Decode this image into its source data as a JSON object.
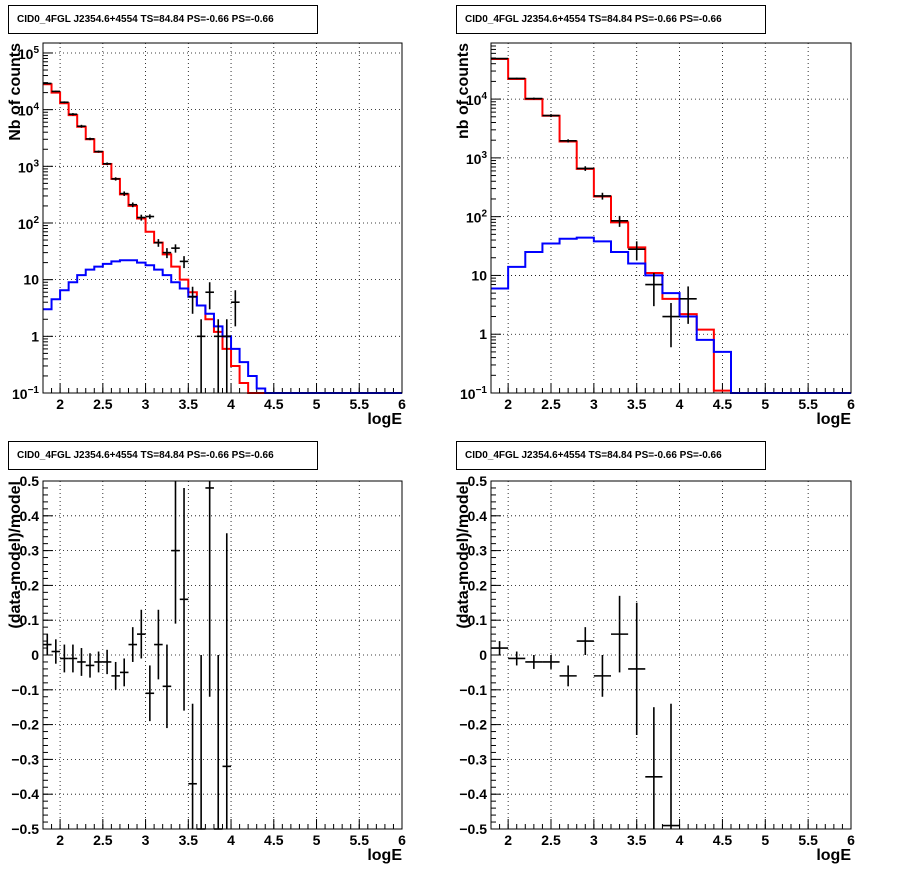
{
  "chart_data": [
    {
      "type": "histogram",
      "title": "CID0_4FGL J2354.6+4554 TS=84.84 PS=-0.66 PS=-0.66",
      "xlabel": "logE",
      "ylabel": "Nb of counts",
      "yscale": "log",
      "xlim": [
        1.8,
        6.0
      ],
      "ylim": [
        0.1,
        150000
      ],
      "xticks": [
        "2",
        "2.5",
        "3",
        "3.5",
        "4",
        "4.5",
        "5",
        "5.5",
        "6"
      ],
      "yticks": [
        {
          "v": 0.1,
          "base": "10",
          "exp": "−1"
        },
        {
          "v": 1,
          "label": "1"
        },
        {
          "v": 10,
          "label": "10"
        },
        {
          "v": 100,
          "base": "10",
          "exp": "2"
        },
        {
          "v": 1000,
          "base": "10",
          "exp": "3"
        },
        {
          "v": 10000,
          "base": "10",
          "exp": "4"
        },
        {
          "v": 100000,
          "base": "10",
          "exp": "5"
        }
      ],
      "grid": true,
      "series": [
        {
          "color": "#ff0000",
          "drawtype": "step",
          "edges": [
            1.8,
            1.9,
            2.0,
            2.1,
            2.2,
            2.3,
            2.4,
            2.5,
            2.6,
            2.7,
            2.8,
            2.9,
            3.0,
            3.1,
            3.2,
            3.3,
            3.4,
            3.5,
            3.6,
            3.7,
            3.8,
            3.9,
            4.0,
            4.1,
            4.2,
            4.3,
            4.4,
            4.5,
            4.6,
            4.7,
            4.8,
            4.9,
            5.0,
            5.1,
            5.2,
            5.3,
            5.4,
            5.5,
            5.6,
            5.7,
            5.8,
            5.9,
            6.0
          ],
          "values": [
            28000,
            20000,
            13000,
            8000,
            5000,
            3000,
            1800,
            1100,
            600,
            320,
            200,
            120,
            70,
            45,
            28,
            17,
            10,
            6,
            3.5,
            2,
            1.2,
            0.6,
            0.3,
            0.15,
            0.1,
            0.1,
            0.1,
            0.1,
            0.1,
            0.1,
            0.1,
            0.1,
            0.1,
            0.1,
            0.1,
            0.1,
            0.1,
            0.1,
            0.1,
            0.1,
            0.1,
            0.1
          ]
        },
        {
          "color": "#0000ff",
          "drawtype": "step",
          "edges": [
            1.8,
            1.9,
            2.0,
            2.1,
            2.2,
            2.3,
            2.4,
            2.5,
            2.6,
            2.7,
            2.8,
            2.9,
            3.0,
            3.1,
            3.2,
            3.3,
            3.4,
            3.5,
            3.6,
            3.7,
            3.8,
            3.9,
            4.0,
            4.1,
            4.2,
            4.3,
            4.4,
            4.5,
            4.6,
            4.7,
            4.8,
            4.9,
            5.0,
            5.1,
            5.2,
            5.3,
            5.4,
            5.5,
            5.6,
            5.7,
            5.8,
            5.9,
            6.0
          ],
          "values": [
            3,
            4.5,
            6.5,
            9,
            12,
            15,
            17,
            19,
            21,
            22,
            22,
            20,
            18,
            15,
            12,
            9,
            7,
            5,
            3.5,
            2.5,
            1.5,
            1,
            0.6,
            0.35,
            0.2,
            0.12,
            0.1,
            0.1,
            0.1,
            0.1,
            0.1,
            0.1,
            0.1,
            0.1,
            0.1,
            0.1,
            0.1,
            0.1,
            0.1,
            0.1,
            0.1,
            0.1
          ]
        },
        {
          "color": "#000000",
          "drawtype": "points",
          "x": [
            1.85,
            1.95,
            2.05,
            2.15,
            2.25,
            2.35,
            2.45,
            2.55,
            2.65,
            2.75,
            2.85,
            2.95,
            3.05,
            3.15,
            3.25,
            3.35,
            3.45,
            3.55,
            3.65,
            3.75,
            3.85,
            3.95,
            4.05
          ],
          "y": [
            29000,
            21000,
            13500,
            8300,
            5100,
            3050,
            1820,
            1110,
            600,
            330,
            210,
            125,
            130,
            45,
            30,
            36,
            21,
            5,
            1,
            6,
            1,
            1,
            4
          ],
          "yerr": [
            800,
            600,
            500,
            400,
            300,
            150,
            80,
            60,
            40,
            30,
            20,
            15,
            12,
            7,
            6,
            6,
            5,
            2.5,
            1,
            3,
            1,
            1,
            2.5
          ]
        }
      ]
    },
    {
      "type": "histogram",
      "title": "CID0_4FGL J2354.6+4554 TS=84.84 PS=-0.66 PS=-0.66",
      "xlabel": "logE",
      "ylabel": "nb of counts",
      "yscale": "log",
      "xlim": [
        1.8,
        6.0
      ],
      "ylim": [
        0.1,
        90000
      ],
      "xticks": [
        "2",
        "2.5",
        "3",
        "3.5",
        "4",
        "4.5",
        "5",
        "5.5",
        "6"
      ],
      "yticks": [
        {
          "v": 0.1,
          "base": "10",
          "exp": "−1"
        },
        {
          "v": 1,
          "label": "1"
        },
        {
          "v": 10,
          "label": "10"
        },
        {
          "v": 100,
          "base": "10",
          "exp": "2"
        },
        {
          "v": 1000,
          "base": "10",
          "exp": "3"
        },
        {
          "v": 10000,
          "base": "10",
          "exp": "4"
        }
      ],
      "grid": true,
      "series": [
        {
          "color": "#ff0000",
          "drawtype": "step",
          "edges": [
            1.8,
            2.0,
            2.2,
            2.4,
            2.6,
            2.8,
            3.0,
            3.2,
            3.4,
            3.6,
            3.8,
            4.0,
            4.2,
            4.4,
            4.6,
            4.8,
            5.0,
            5.2,
            5.4,
            5.6,
            5.8,
            6.0
          ],
          "values": [
            48000,
            22000,
            10000,
            5200,
            1900,
            650,
            220,
            80,
            30,
            11,
            4,
            2.2,
            1.2,
            0.11,
            0.1,
            0.1,
            0.1,
            0.1,
            0.1,
            0.1,
            0.1
          ]
        },
        {
          "color": "#0000ff",
          "drawtype": "step",
          "edges": [
            1.8,
            2.0,
            2.2,
            2.4,
            2.6,
            2.8,
            3.0,
            3.2,
            3.4,
            3.6,
            3.8,
            4.0,
            4.2,
            4.4,
            4.6,
            4.8,
            5.0,
            5.2,
            5.4,
            5.6,
            5.8,
            6.0
          ],
          "values": [
            6,
            14,
            25,
            35,
            42,
            44,
            38,
            25,
            16,
            10,
            5,
            2,
            0.8,
            0.5,
            0.1,
            0.1,
            0.1,
            0.1,
            0.1,
            0.1,
            0.1
          ]
        },
        {
          "color": "#000000",
          "drawtype": "points",
          "x": [
            1.9,
            2.1,
            2.3,
            2.5,
            2.7,
            2.9,
            3.1,
            3.3,
            3.5,
            3.7,
            3.9,
            4.1
          ],
          "y": [
            49000,
            22500,
            10200,
            5250,
            1950,
            660,
            225,
            85,
            28,
            7,
            2,
            4
          ],
          "yerr": [
            900,
            600,
            400,
            300,
            120,
            60,
            30,
            18,
            10,
            4,
            1.4,
            2.5
          ]
        }
      ]
    },
    {
      "type": "scatter",
      "title": "CID0_4FGL J2354.6+4554 TS=84.84 PS=-0.66 PS=-0.66",
      "xlabel": "logE",
      "ylabel": "(data-model)/model",
      "yscale": "linear",
      "xlim": [
        1.8,
        6.0
      ],
      "ylim": [
        -0.5,
        0.5
      ],
      "xticks": [
        "2",
        "2.5",
        "3",
        "3.5",
        "4",
        "4.5",
        "5",
        "5.5",
        "6"
      ],
      "yticks": [
        "−0.5",
        "−0.4",
        "−0.3",
        "−0.2",
        "−0.1",
        "0",
        "0.1",
        "0.2",
        "0.3",
        "0.4",
        "0.5"
      ],
      "grid": true,
      "series": [
        {
          "color": "#000000",
          "drawtype": "points",
          "xhalf": 0.05,
          "x": [
            1.85,
            1.95,
            2.05,
            2.15,
            2.25,
            2.35,
            2.45,
            2.55,
            2.65,
            2.75,
            2.85,
            2.95,
            3.05,
            3.15,
            3.25,
            3.35,
            3.45,
            3.55,
            3.65,
            3.75,
            3.85,
            3.95
          ],
          "y": [
            0.03,
            0.01,
            -0.01,
            -0.01,
            -0.02,
            -0.03,
            -0.02,
            -0.02,
            -0.06,
            -0.05,
            0.03,
            0.06,
            -0.11,
            0.03,
            -0.09,
            0.3,
            0.16,
            -0.37,
            -0.5,
            0.48,
            -0.5,
            -0.32
          ],
          "yerr": [
            0.03,
            0.035,
            0.04,
            0.04,
            0.04,
            0.035,
            0.03,
            0.035,
            0.04,
            0.04,
            0.05,
            0.07,
            0.08,
            0.1,
            0.12,
            0.21,
            0.32,
            0.23,
            0.5,
            0.6,
            0.5,
            0.67
          ]
        }
      ]
    },
    {
      "type": "scatter",
      "title": "CID0_4FGL J2354.6+4554 TS=84.84 PS=-0.66 PS=-0.66",
      "xlabel": "logE",
      "ylabel": "(data-model)/model",
      "yscale": "linear",
      "xlim": [
        1.8,
        6.0
      ],
      "ylim": [
        -0.5,
        0.5
      ],
      "xticks": [
        "2",
        "2.5",
        "3",
        "3.5",
        "4",
        "4.5",
        "5",
        "5.5",
        "6"
      ],
      "yticks": [
        "−0.5",
        "−0.4",
        "−0.3",
        "−0.2",
        "−0.1",
        "0",
        "0.1",
        "0.2",
        "0.3",
        "0.4",
        "0.5"
      ],
      "grid": true,
      "series": [
        {
          "color": "#000000",
          "drawtype": "points",
          "xhalf": 0.1,
          "x": [
            1.9,
            2.1,
            2.3,
            2.5,
            2.7,
            2.9,
            3.1,
            3.3,
            3.5,
            3.7,
            3.9
          ],
          "y": [
            0.02,
            -0.01,
            -0.02,
            -0.02,
            -0.06,
            0.04,
            -0.06,
            0.06,
            -0.04,
            -0.35,
            -0.49
          ],
          "yerr": [
            0.02,
            0.02,
            0.02,
            0.02,
            0.03,
            0.04,
            0.06,
            0.11,
            0.19,
            0.2,
            0.35
          ]
        }
      ]
    }
  ]
}
